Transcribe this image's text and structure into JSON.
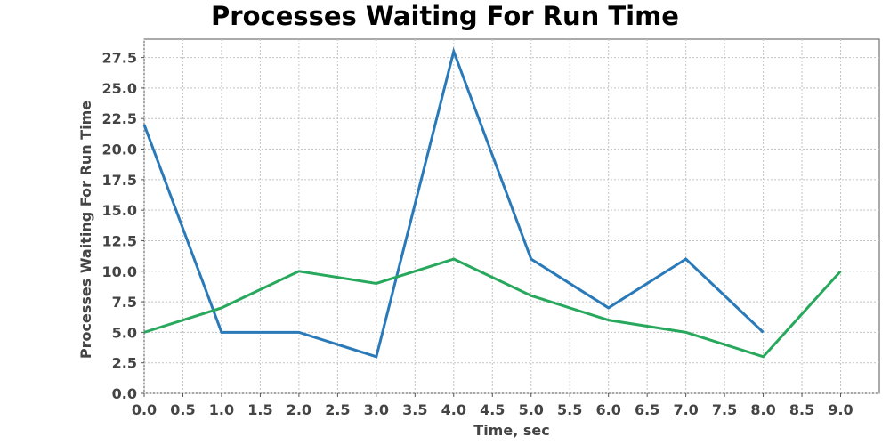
{
  "chart_data": {
    "type": "line",
    "title": "Processes Waiting For Run Time",
    "xlabel": "Time, sec",
    "ylabel": "Processes Waiting For Run Time",
    "xlim": [
      0,
      9.5
    ],
    "ylim": [
      0,
      29
    ],
    "x_ticks": [
      "0.0",
      "0.5",
      "1.0",
      "1.5",
      "2.0",
      "2.5",
      "3.0",
      "3.5",
      "4.0",
      "4.5",
      "5.0",
      "5.5",
      "6.0",
      "6.5",
      "7.0",
      "7.5",
      "8.0",
      "8.5",
      "9.0"
    ],
    "y_ticks": [
      "0.0",
      "2.5",
      "5.0",
      "7.5",
      "10.0",
      "12.5",
      "15.0",
      "17.5",
      "20.0",
      "22.5",
      "25.0",
      "27.5"
    ],
    "grid": true,
    "series": [
      {
        "color": "#2a7ab9",
        "x": [
          0,
          1,
          2,
          3,
          4,
          5,
          6,
          7,
          8
        ],
        "values": [
          22,
          5,
          5,
          3,
          28,
          11,
          7,
          11,
          5
        ]
      },
      {
        "color": "#27a85c",
        "x": [
          0,
          1,
          2,
          3,
          4,
          5,
          6,
          7,
          8,
          9
        ],
        "values": [
          5,
          7,
          10,
          9,
          11,
          8,
          6,
          5,
          3,
          10
        ]
      }
    ]
  }
}
